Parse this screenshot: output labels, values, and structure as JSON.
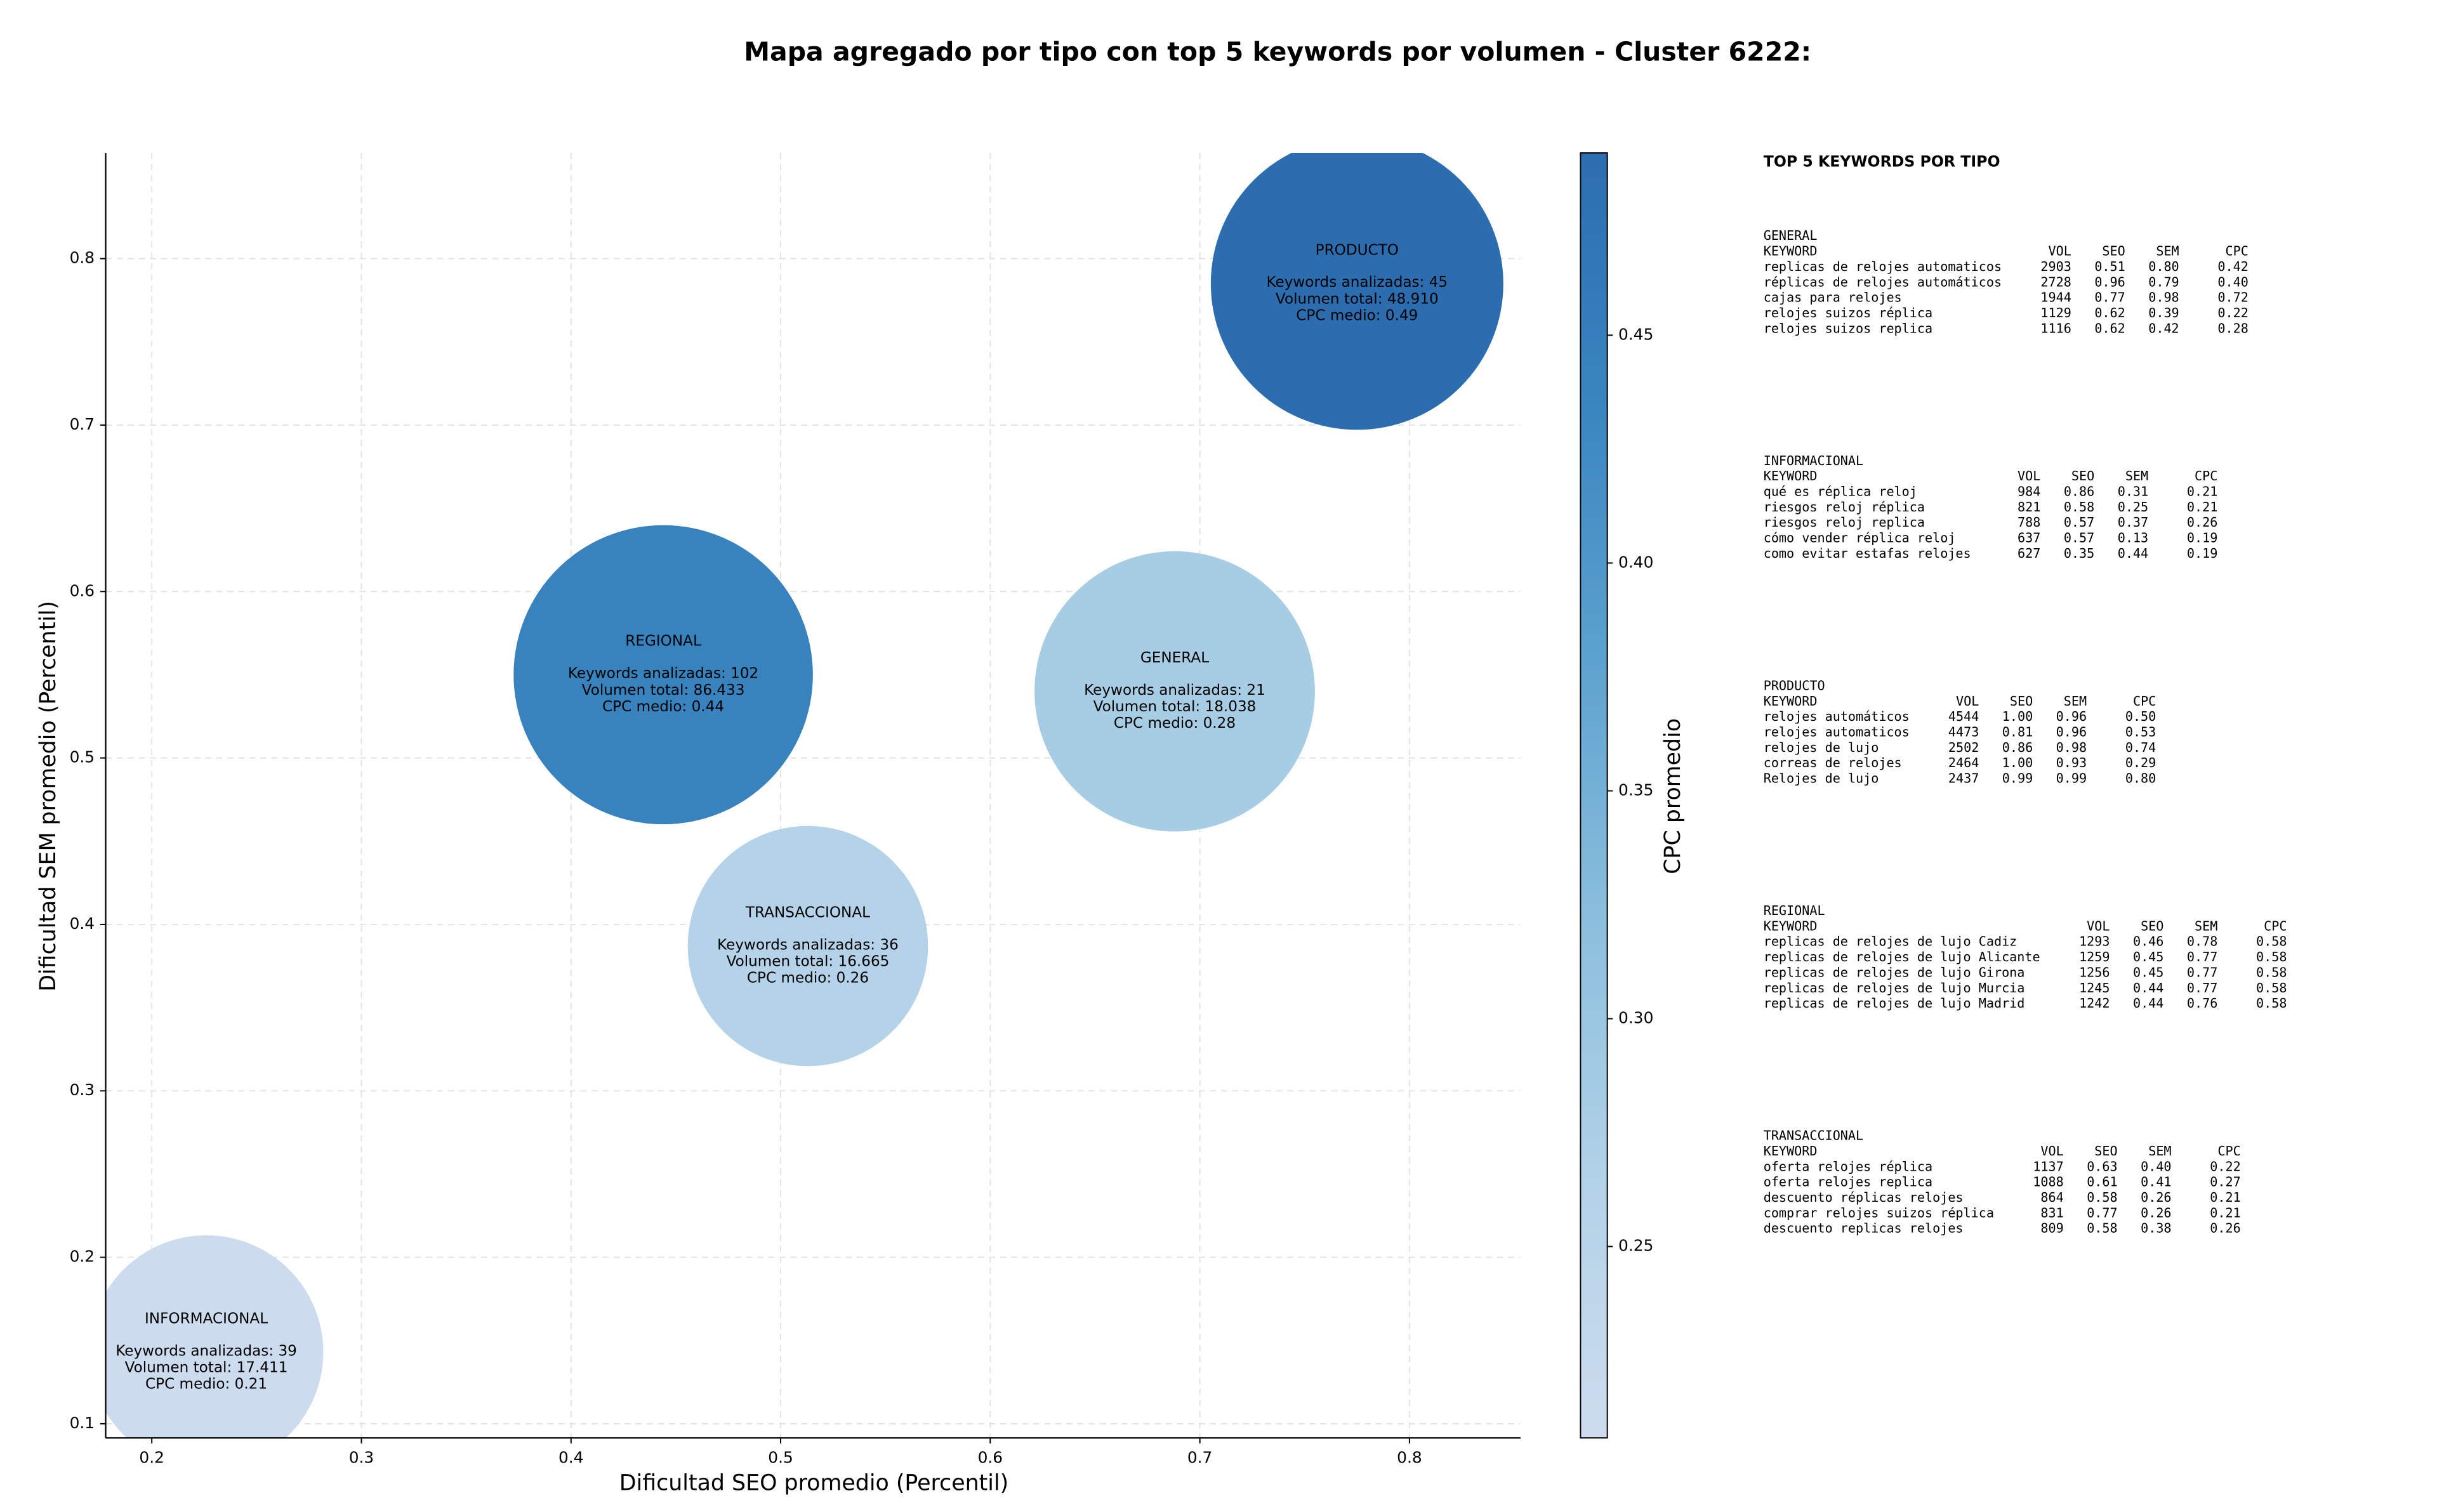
{
  "chart_data": {
    "type": "scatter",
    "title": "Mapa agregado por tipo con top 5 keywords por volumen - Cluster 6222:",
    "xlabel": "Dificultad SEO promedio (Percentil)",
    "ylabel": "Dificultad SEM promedio (Percentil)",
    "categories": [
      "GENERAL",
      "INFORMACIONAL",
      "PRODUCTO",
      "REGIONAL",
      "TRANSACCIONAL"
    ],
    "x": [
      0.688,
      0.226,
      0.775,
      0.444,
      0.513
    ],
    "y": [
      0.54,
      0.143,
      0.785,
      0.55,
      0.387
    ],
    "sizes": [
      7900,
      5500,
      8600,
      9000,
      5800
    ],
    "cpc": [
      0.28,
      0.21,
      0.49,
      0.44,
      0.26
    ],
    "keywords_labels": [
      "Keywords analizadas: 21",
      "Keywords analizadas: 39",
      "Keywords analizadas: 45",
      "Keywords analizadas: 102",
      "Keywords analizadas: 36"
    ],
    "volume_labels": [
      "Volumen total: 18.038",
      "Volumen total: 17.411",
      "Volumen total: 48.910",
      "Volumen total: 86.433",
      "Volumen total: 16.665"
    ],
    "cpc_labels": [
      "CPC medio: 0.28",
      "CPC medio: 0.21",
      "CPC medio: 0.49",
      "CPC medio: 0.44",
      "CPC medio: 0.26"
    ],
    "xlim": [
      0.178,
      0.853
    ],
    "xticks": [
      0.2,
      0.3,
      0.4,
      0.5,
      0.6,
      0.7,
      0.8
    ],
    "ylim": [
      0.0915,
      0.8635
    ],
    "yticks": [
      0.1,
      0.2,
      0.3,
      0.4,
      0.5,
      0.6,
      0.7,
      0.8
    ],
    "grid": true,
    "colorbar": {
      "label": "CPC promedio",
      "lim": [
        0.208,
        0.49
      ],
      "ticks": [
        0.25,
        {
          "value": 0.3,
          "label": "0.30"
        },
        0.35,
        {
          "value": 0.4,
          "label": "0.40"
        },
        0.45
      ],
      "colorscale": [
        "#cddcee",
        "#b2d2e8",
        "#8cbfdd",
        "#5ea3cf",
        "#3a86c0",
        "#2c6db0"
      ]
    }
  },
  "keyword_panel": {
    "title": "TOP 5 KEYWORDS POR TIPO",
    "groups": [
      {
        "name": "GENERAL",
        "header": [
          "KEYWORD",
          "VOL",
          "SEO",
          "SEM",
          "CPC"
        ],
        "rows": [
          [
            "replicas de relojes automaticos",
            "2903",
            "0.51",
            "0.80",
            "0.42"
          ],
          [
            "réplicas de relojes automáticos",
            "2728",
            "0.96",
            "0.79",
            "0.40"
          ],
          [
            "cajas para relojes",
            "1944",
            "0.77",
            "0.98",
            "0.72"
          ],
          [
            "relojes suizos réplica",
            "1129",
            "0.62",
            "0.39",
            "0.22"
          ],
          [
            "relojes suizos replica",
            "1116",
            "0.62",
            "0.42",
            "0.28"
          ]
        ]
      },
      {
        "name": "INFORMACIONAL",
        "header": [
          "KEYWORD",
          "VOL",
          "SEO",
          "SEM",
          "CPC"
        ],
        "rows": [
          [
            "qué es réplica reloj",
            "984",
            "0.86",
            "0.31",
            "0.21"
          ],
          [
            "riesgos reloj réplica",
            "821",
            "0.58",
            "0.25",
            "0.21"
          ],
          [
            "riesgos reloj replica",
            "788",
            "0.57",
            "0.37",
            "0.26"
          ],
          [
            "cómo vender réplica reloj",
            "637",
            "0.57",
            "0.13",
            "0.19"
          ],
          [
            "como evitar estafas relojes",
            "627",
            "0.35",
            "0.44",
            "0.19"
          ]
        ]
      },
      {
        "name": "PRODUCTO",
        "header": [
          "KEYWORD",
          "VOL",
          "SEO",
          "SEM",
          "CPC"
        ],
        "rows": [
          [
            "relojes automáticos",
            "4544",
            "1.00",
            "0.96",
            "0.50"
          ],
          [
            "relojes automaticos",
            "4473",
            "0.81",
            "0.96",
            "0.53"
          ],
          [
            "relojes de lujo",
            "2502",
            "0.86",
            "0.98",
            "0.74"
          ],
          [
            "correas de relojes",
            "2464",
            "1.00",
            "0.93",
            "0.29"
          ],
          [
            "Relojes de lujo",
            "2437",
            "0.99",
            "0.99",
            "0.80"
          ]
        ]
      },
      {
        "name": "REGIONAL",
        "header": [
          "KEYWORD",
          "VOL",
          "SEO",
          "SEM",
          "CPC"
        ],
        "rows": [
          [
            "replicas de relojes de lujo Cadiz",
            "1293",
            "0.46",
            "0.78",
            "0.58"
          ],
          [
            "replicas de relojes de lujo Alicante",
            "1259",
            "0.45",
            "0.77",
            "0.58"
          ],
          [
            "replicas de relojes de lujo Girona",
            "1256",
            "0.45",
            "0.77",
            "0.58"
          ],
          [
            "replicas de relojes de lujo Murcia",
            "1245",
            "0.44",
            "0.77",
            "0.58"
          ],
          [
            "replicas de relojes de lujo Madrid",
            "1242",
            "0.44",
            "0.76",
            "0.58"
          ]
        ]
      },
      {
        "name": "TRANSACCIONAL",
        "header": [
          "KEYWORD",
          "VOL",
          "SEO",
          "SEM",
          "CPC"
        ],
        "rows": [
          [
            "oferta relojes réplica",
            "1137",
            "0.63",
            "0.40",
            "0.22"
          ],
          [
            "oferta relojes replica",
            "1088",
            "0.61",
            "0.41",
            "0.27"
          ],
          [
            "descuento réplicas relojes",
            "864",
            "0.58",
            "0.26",
            "0.21"
          ],
          [
            "comprar relojes suizos réplica",
            "831",
            "0.77",
            "0.26",
            "0.21"
          ],
          [
            "descuento replicas relojes",
            "809",
            "0.58",
            "0.38",
            "0.26"
          ]
        ]
      }
    ]
  }
}
